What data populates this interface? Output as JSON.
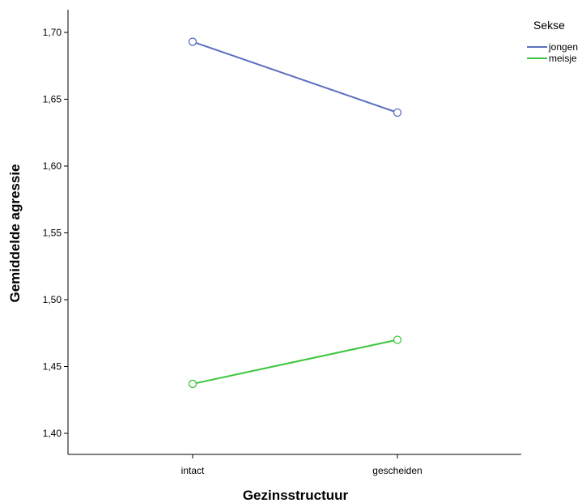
{
  "chart_data": {
    "type": "line",
    "xlabel": "Gezinsstructuur",
    "ylabel": "Gemiddelde agressie",
    "categories": [
      "intact",
      "gescheiden"
    ],
    "ylim": [
      1.38,
      1.72
    ],
    "yticks": [
      "1,40",
      "1,45",
      "1,50",
      "1,55",
      "1,60",
      "1,65",
      "1,70"
    ],
    "ytick_values": [
      1.4,
      1.45,
      1.5,
      1.55,
      1.6,
      1.65,
      1.7
    ],
    "grid": false,
    "legend": {
      "title": "Sekse",
      "placement": "top-right"
    },
    "series": [
      {
        "name": "jongen",
        "values": [
          1.693,
          1.64
        ],
        "color": "#5b6fc0"
      },
      {
        "name": "meisje",
        "values": [
          1.437,
          1.47
        ],
        "color": "#3cc63c"
      }
    ]
  }
}
